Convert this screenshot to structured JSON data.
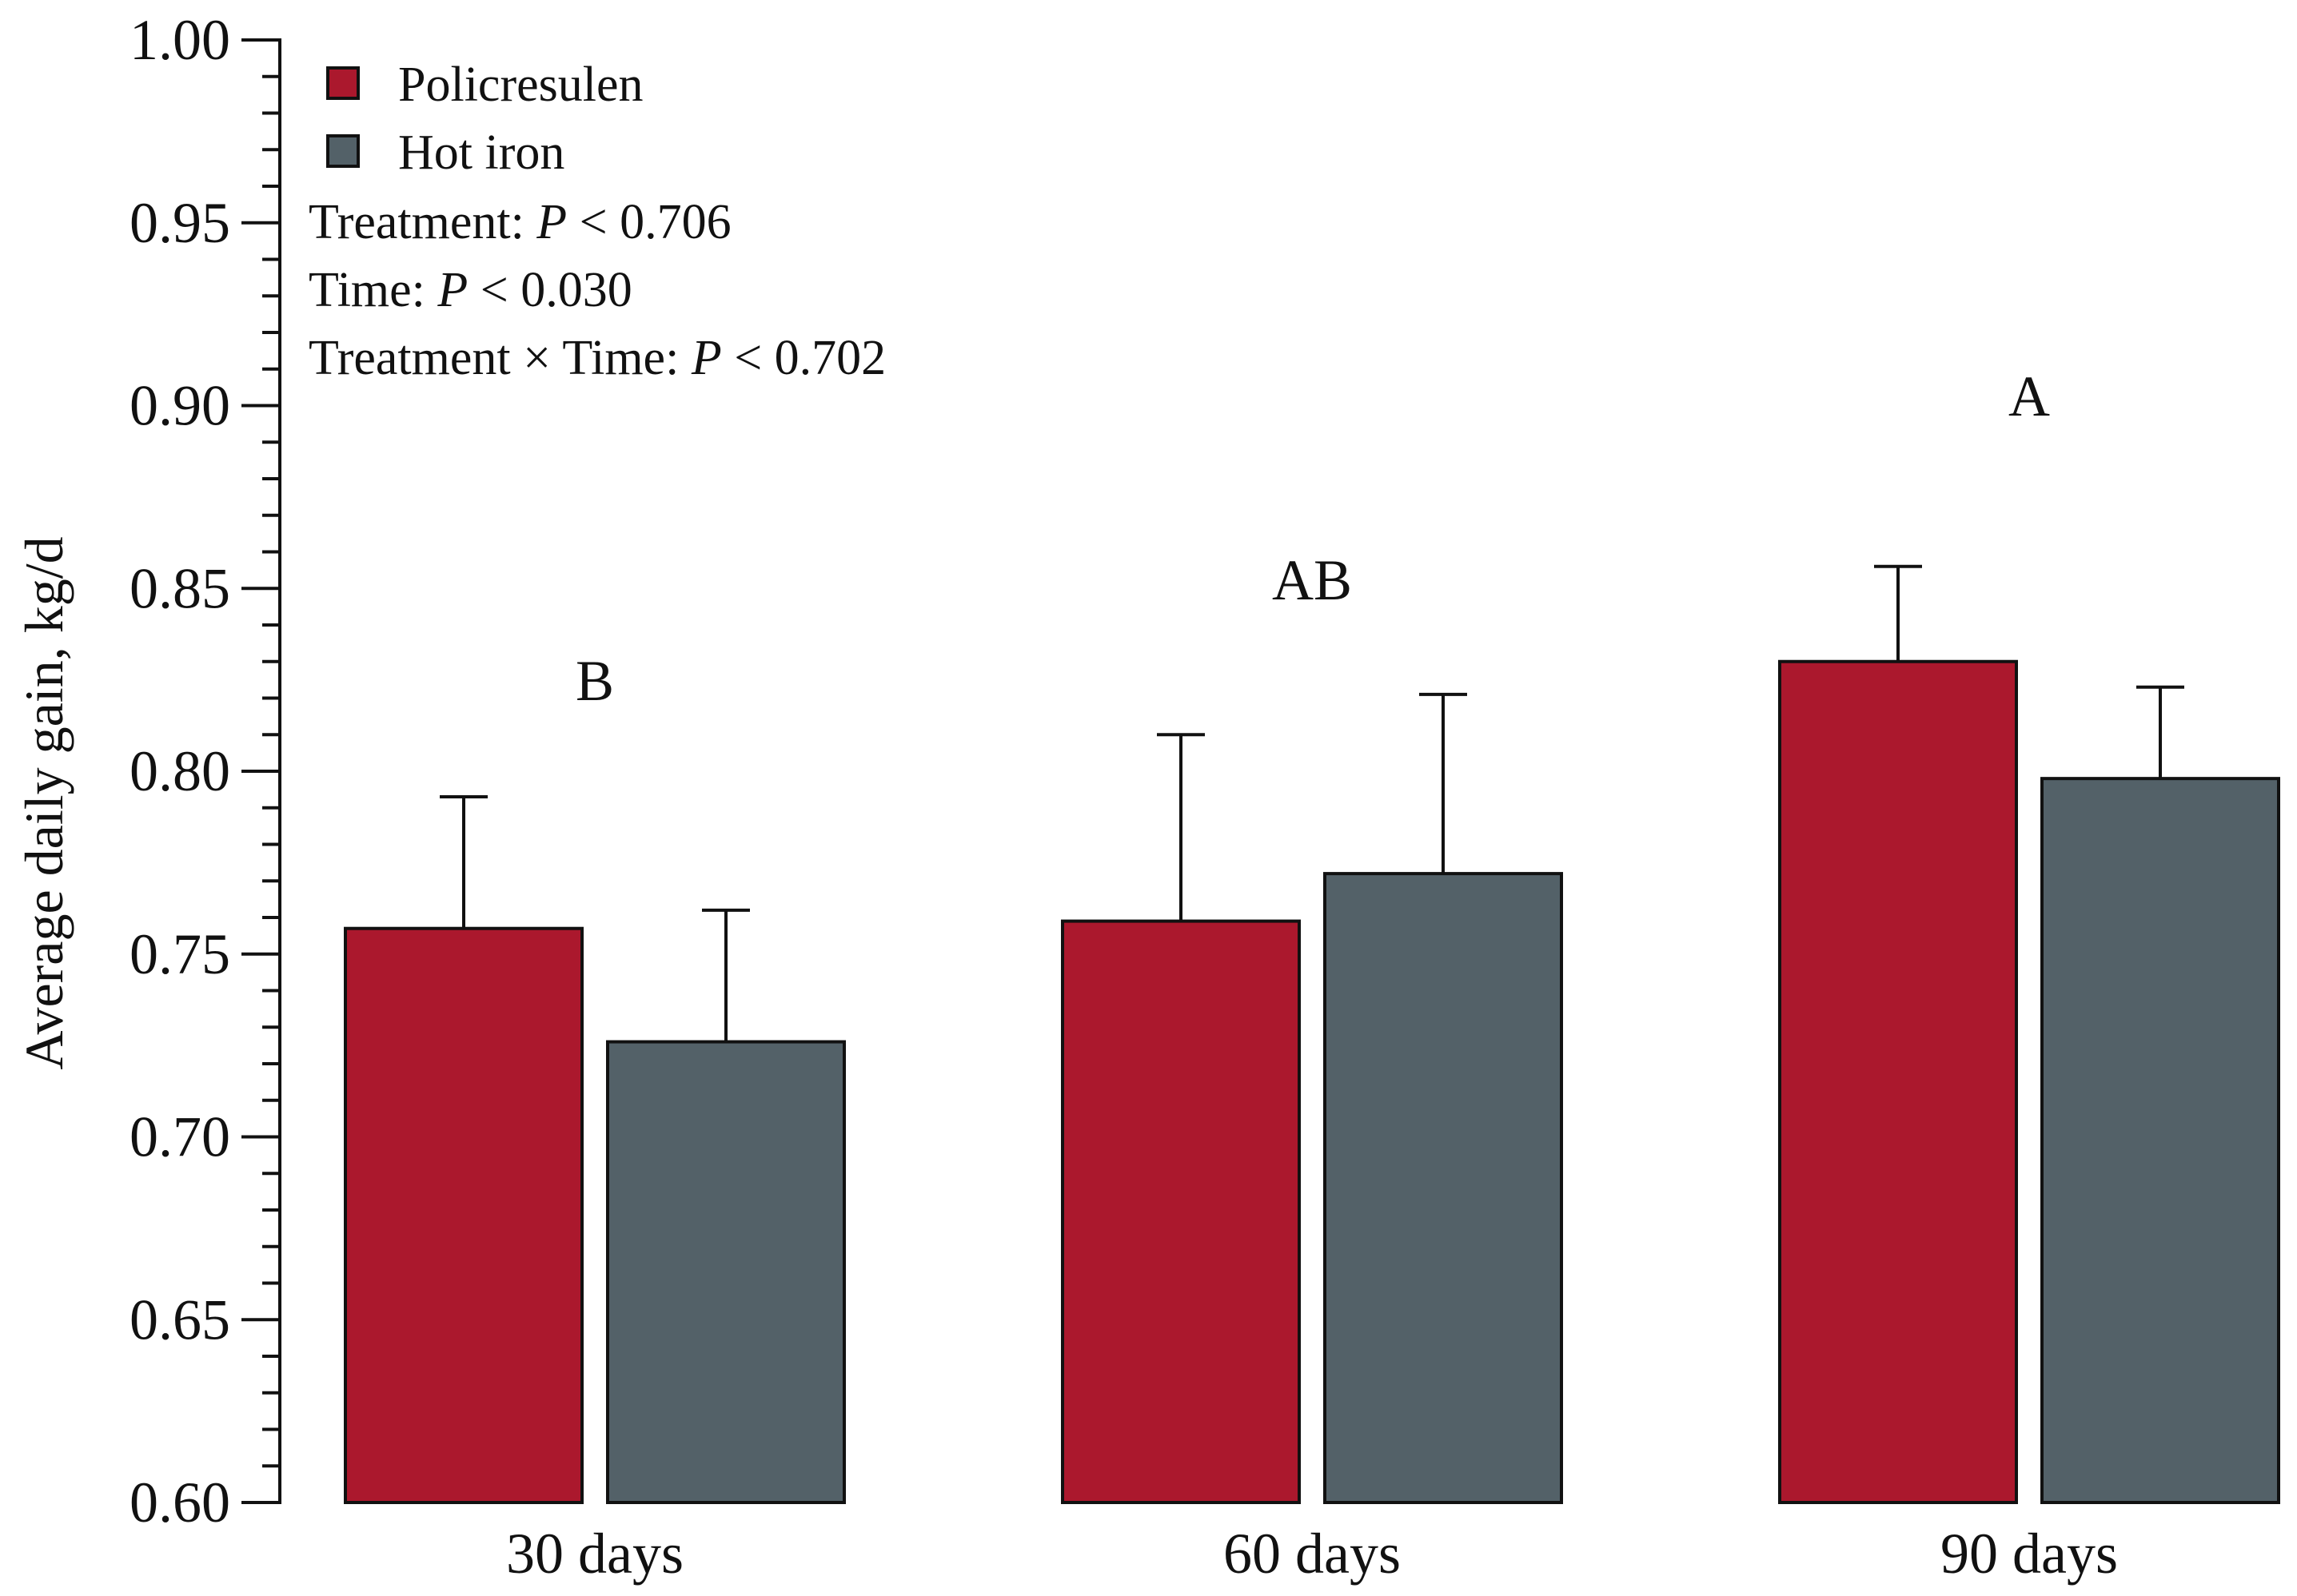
{
  "chart_data": {
    "type": "bar",
    "title": "",
    "xlabel": "",
    "ylabel": "Average daily gain, kg/d",
    "ylim": [
      0.6,
      1.0
    ],
    "y_ticks": [
      "0.60",
      "0.65",
      "0.70",
      "0.75",
      "0.80",
      "0.85",
      "0.90",
      "0.95",
      "1.00"
    ],
    "categories": [
      "30 days",
      "60 days",
      "90 days"
    ],
    "series": [
      {
        "name": "Policresulen",
        "color": "#ab182d",
        "values": [
          0.757,
          0.759,
          0.83
        ],
        "errors": [
          0.036,
          0.051,
          0.026
        ]
      },
      {
        "name": "Hot iron",
        "color": "#536168",
        "values": [
          0.726,
          0.772,
          0.798
        ],
        "errors": [
          0.036,
          0.049,
          0.025
        ]
      }
    ],
    "group_letters": [
      "B",
      "AB",
      "A"
    ],
    "grid": false,
    "legend_position": "top-left"
  },
  "stats": {
    "treatment": {
      "label": "Treatment: ",
      "p": "P",
      "rest": " < 0.706"
    },
    "time": {
      "label": "Time: ",
      "p": "P",
      "rest": " < 0.030"
    },
    "interaction": {
      "label": "Treatment × Time: ",
      "p": "P",
      "rest": " < 0.702"
    }
  }
}
